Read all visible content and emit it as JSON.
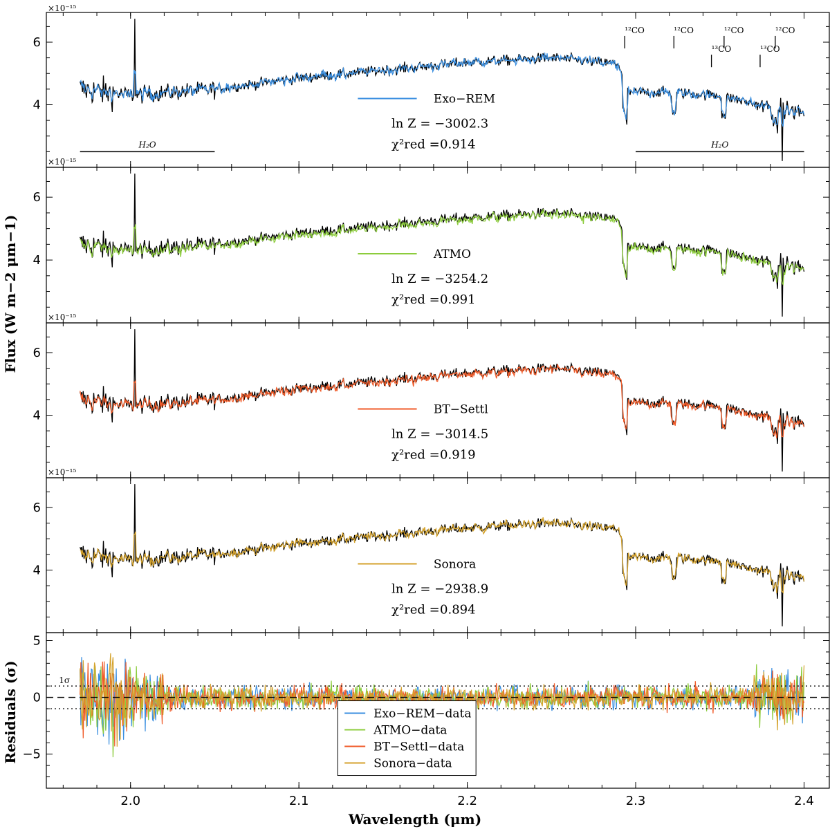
{
  "chart_data": {
    "type": "line",
    "title": "",
    "xlabel": "Wavelength (μm)",
    "xlim": [
      1.95,
      2.415
    ],
    "xticks": [
      "2.0",
      "2.1",
      "2.2",
      "2.3",
      "2.4"
    ],
    "flux_ylabel": "Flux (W m−2 μm−1)",
    "flux_ylim": [
      2.0,
      6.95
    ],
    "flux_yticks": [
      "4",
      "6"
    ],
    "flux_scale": "×10⁻¹⁵",
    "residual_ylabel": "Residuals (σ)",
    "residual_ylim": [
      -8.0,
      5.7
    ],
    "residual_yticks": [
      "−5",
      "0",
      "5"
    ],
    "data_color": "#000000",
    "data_series_profile": {
      "name": "data",
      "x": [
        1.97,
        2.0,
        2.05,
        2.1,
        2.15,
        2.2,
        2.25,
        2.29,
        2.295,
        2.32,
        2.35,
        2.38,
        2.4
      ],
      "flux": [
        4.5,
        4.3,
        4.5,
        4.85,
        5.1,
        5.35,
        5.5,
        5.3,
        4.4,
        4.4,
        4.3,
        3.9,
        3.75
      ]
    },
    "panels": [
      {
        "model": "Exo−REM",
        "color": "#3b8fe0",
        "lnZ": "ln Z = −3002.3",
        "chi2": "0.914"
      },
      {
        "model": "ATMO",
        "color": "#8ccc3c",
        "lnZ": "ln Z = −3254.2",
        "chi2": "0.991"
      },
      {
        "model": "BT−Settl",
        "color": "#f05a28",
        "lnZ": "ln Z = −3014.5",
        "chi2": "0.919"
      },
      {
        "model": "Sonora",
        "color": "#d4a22c",
        "lnZ": "ln Z = −2938.9",
        "chi2": "0.894"
      }
    ],
    "chi2_label": "χ²red =",
    "annotations": {
      "water_left": {
        "label": "H₂O",
        "x_range": [
          1.97,
          2.05
        ]
      },
      "water_right": {
        "label": "H₂O",
        "x_range": [
          2.3,
          2.4
        ]
      },
      "co_lines": [
        {
          "label": "¹²CO",
          "x": 2.2935,
          "flux_top": 6.2,
          "flux_bottom": 5.8
        },
        {
          "label": "¹²CO",
          "x": 2.3227,
          "flux_top": 6.2,
          "flux_bottom": 5.8
        },
        {
          "label": "¹²CO",
          "x": 2.3525,
          "flux_top": 6.2,
          "flux_bottom": 5.8
        },
        {
          "label": "¹²CO",
          "x": 2.3829,
          "flux_top": 6.2,
          "flux_bottom": 5.8
        },
        {
          "label": "¹³CO",
          "x": 2.345,
          "flux_top": 5.6,
          "flux_bottom": 5.2
        },
        {
          "label": "¹³CO",
          "x": 2.3739,
          "flux_top": 5.6,
          "flux_bottom": 5.2
        }
      ],
      "one_sigma": "1σ"
    },
    "residual_legend": [
      "Exo−REM−data",
      "ATMO−data",
      "BT−Settl−data",
      "Sonora−data"
    ],
    "residual_lines": {
      "zero": 0,
      "plus_one_sigma": 1,
      "minus_one_sigma": -1
    }
  }
}
